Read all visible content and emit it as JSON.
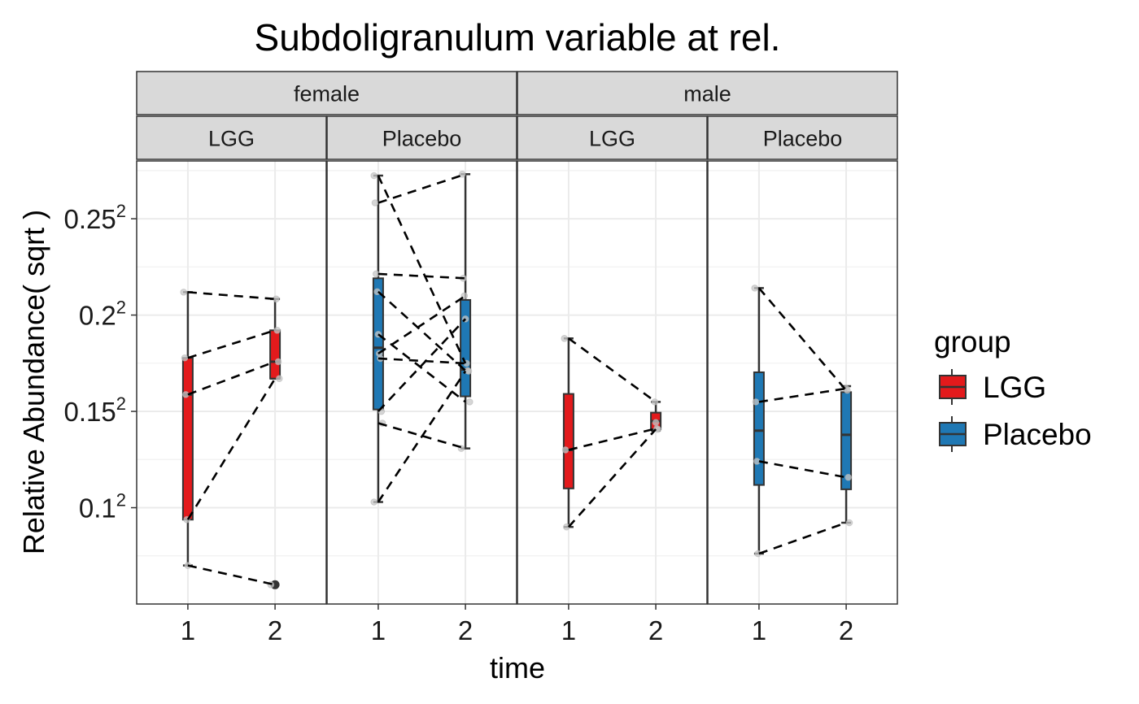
{
  "chart_data": {
    "type": "box",
    "title": "Subdoligranulum variable at rel.",
    "xlabel": "time",
    "ylabel": "Relative Abundance( sqrt )",
    "y_scale": "sqrt",
    "ylim": [
      0.0025,
      0.0784
    ],
    "y_ticks": [
      {
        "value": 0.01,
        "base": "0.1",
        "exp": "2"
      },
      {
        "value": 0.0225,
        "base": "0.15",
        "exp": "2"
      },
      {
        "value": 0.04,
        "base": "0.2",
        "exp": "2"
      },
      {
        "value": 0.0625,
        "base": "0.25",
        "exp": "2"
      }
    ],
    "x_categories": [
      "1",
      "2"
    ],
    "grid": true,
    "colors": {
      "LGG": "#e31a1c",
      "Placebo": "#1f78b4"
    },
    "facet_rows_top": [
      {
        "label": "female",
        "span": [
          0,
          1
        ]
      },
      {
        "label": "male",
        "span": [
          2,
          3
        ]
      }
    ],
    "panels": [
      {
        "sex": "female",
        "group": "LGG",
        "boxes": [
          {
            "time": "1",
            "q1": 0.0088,
            "median": 0.0252,
            "q3": 0.0316,
            "lower": 0.0049,
            "upper": 0.0449,
            "outliers": []
          },
          {
            "time": "2",
            "q1": 0.0279,
            "median": 0.0309,
            "q3": 0.0369,
            "lower": 0.0279,
            "upper": 0.0434,
            "outliers": [
              0.0036
            ]
          }
        ],
        "pairs": [
          [
            0.0449,
            0.0434
          ],
          [
            0.0316,
            0.0369
          ],
          [
            0.0252,
            0.0309
          ],
          [
            0.0088,
            0.0279
          ],
          [
            0.0049,
            0.0036
          ]
        ],
        "points": [
          [
            1,
            0.0449
          ],
          [
            1,
            0.0316
          ],
          [
            1,
            0.0252
          ],
          [
            1,
            0.0088
          ],
          [
            1,
            0.0049
          ],
          [
            2,
            0.0434
          ],
          [
            2,
            0.0369
          ],
          [
            2,
            0.0309
          ],
          [
            2,
            0.0279
          ],
          [
            2,
            0.0036
          ]
        ]
      },
      {
        "sex": "female",
        "group": "Placebo",
        "boxes": [
          {
            "time": "1",
            "q1": 0.0228,
            "median": 0.0335,
            "q3": 0.048,
            "lower": 0.0106,
            "upper": 0.0742,
            "outliers": []
          },
          {
            "time": "2",
            "q1": 0.0249,
            "median": 0.0295,
            "q3": 0.0432,
            "lower": 0.0171,
            "upper": 0.0746,
            "outliers": []
          }
        ],
        "pairs": [
          [
            0.0742,
            0.0306
          ],
          [
            0.0667,
            0.0746
          ],
          [
            0.049,
            0.048
          ],
          [
            0.045,
            0.0293
          ],
          [
            0.0361,
            0.024
          ],
          [
            0.0324,
            0.0441
          ],
          [
            0.0315,
            0.0306
          ],
          [
            0.0225,
            0.0392
          ],
          [
            0.0207,
            0.0171
          ],
          [
            0.0106,
            0.0292
          ]
        ],
        "points": [
          [
            1,
            0.0742
          ],
          [
            1,
            0.0667
          ],
          [
            1,
            0.049
          ],
          [
            1,
            0.045
          ],
          [
            1,
            0.0361
          ],
          [
            1,
            0.0324
          ],
          [
            1,
            0.0315
          ],
          [
            1,
            0.0225
          ],
          [
            1,
            0.0207
          ],
          [
            1,
            0.0106
          ],
          [
            2,
            0.0746
          ],
          [
            2,
            0.048
          ],
          [
            2,
            0.0441
          ],
          [
            2,
            0.0392
          ],
          [
            2,
            0.0306
          ],
          [
            2,
            0.0293
          ],
          [
            2,
            0.0292
          ],
          [
            2,
            0.024
          ],
          [
            2,
            0.0171
          ]
        ]
      },
      {
        "sex": "male",
        "group": "LGG",
        "boxes": [
          {
            "time": "1",
            "q1": 0.0121,
            "median": 0.0169,
            "q3": 0.0253,
            "lower": 0.0081,
            "upper": 0.0353,
            "outliers": []
          },
          {
            "time": "2",
            "q1": 0.0198,
            "median": 0.021,
            "q3": 0.0223,
            "lower": 0.0196,
            "upper": 0.024,
            "outliers": []
          }
        ],
        "pairs": [
          [
            0.0353,
            0.024
          ],
          [
            0.0169,
            0.0199
          ],
          [
            0.0081,
            0.0198
          ]
        ],
        "points": [
          [
            1,
            0.0353
          ],
          [
            1,
            0.0169
          ],
          [
            1,
            0.0081
          ],
          [
            2,
            0.024
          ],
          [
            2,
            0.0208
          ],
          [
            2,
            0.0199
          ],
          [
            2,
            0.0198
          ]
        ]
      },
      {
        "sex": "male",
        "group": "Placebo",
        "boxes": [
          {
            "time": "1",
            "q1": 0.0125,
            "median": 0.0196,
            "q3": 0.029,
            "lower": 0.0058,
            "upper": 0.0458,
            "outliers": []
          },
          {
            "time": "2",
            "q1": 0.012,
            "median": 0.019,
            "q3": 0.0256,
            "lower": 0.0085,
            "upper": 0.0266,
            "outliers": []
          }
        ],
        "pairs": [
          [
            0.0458,
            0.0259
          ],
          [
            0.024,
            0.0262
          ],
          [
            0.0154,
            0.0134
          ],
          [
            0.0058,
            0.0085
          ]
        ],
        "points": [
          [
            1,
            0.0458
          ],
          [
            1,
            0.024
          ],
          [
            1,
            0.0154
          ],
          [
            1,
            0.0058
          ],
          [
            2,
            0.0262
          ],
          [
            2,
            0.0259
          ],
          [
            2,
            0.0134
          ],
          [
            2,
            0.0085
          ]
        ]
      }
    ],
    "legend": {
      "title": "group",
      "position": "right",
      "entries": [
        {
          "label": "LGG",
          "color": "#e31a1c"
        },
        {
          "label": "Placebo",
          "color": "#1f78b4"
        }
      ]
    }
  }
}
